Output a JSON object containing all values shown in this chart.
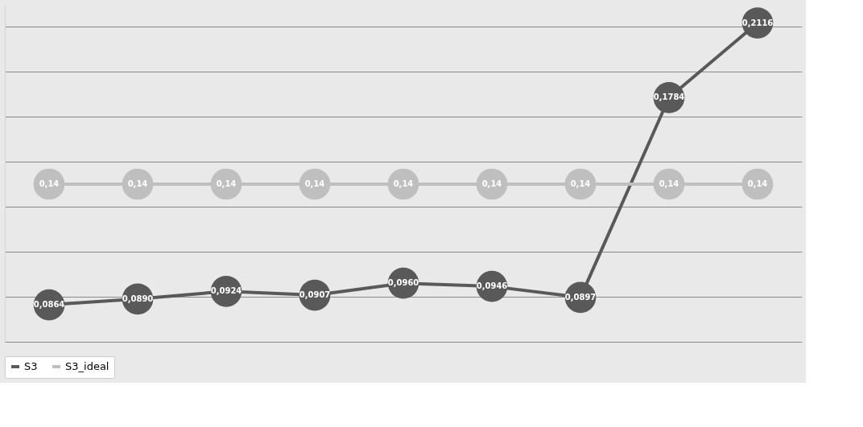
{
  "chart_data": {
    "type": "line",
    "categories": [
      null,
      null,
      null,
      null,
      null,
      null,
      null,
      null,
      null
    ],
    "series": [
      {
        "name": "S3",
        "color": "#595959",
        "values": [
          0.0864,
          0.089,
          0.0924,
          0.0907,
          0.096,
          0.0946,
          0.0897,
          0.1784,
          0.2116
        ],
        "value_labels": [
          "0,0864",
          "0,0890",
          "0,0924",
          "0,0907",
          "0,0960",
          "0,0946",
          "0,0897",
          "0,1784",
          "0,2116"
        ]
      },
      {
        "name": "S3_ideal",
        "color": "#bfbfbf",
        "values": [
          0.14,
          0.14,
          0.14,
          0.14,
          0.14,
          0.14,
          0.14,
          0.14,
          0.14
        ],
        "value_labels": [
          "0,14",
          "0,14",
          "0,14",
          "0,14",
          "0,14",
          "0,14",
          "0,14",
          "0,14",
          "0,14"
        ]
      }
    ],
    "ylim": [
      0.07,
      0.22
    ],
    "yticks": [
      {
        "value": 0.07,
        "label": null
      },
      {
        "value": 0.09,
        "label": null
      },
      {
        "value": 0.11,
        "label": null
      },
      {
        "value": 0.13,
        "label": null
      },
      {
        "value": 0.15,
        "label": null
      },
      {
        "value": 0.17,
        "label": null
      },
      {
        "value": 0.19,
        "label": null
      },
      {
        "value": 0.21,
        "label": null
      }
    ],
    "grid": "y",
    "tick_labels": false,
    "legend": "bottom",
    "marker": "circle",
    "line_style": "solid"
  }
}
